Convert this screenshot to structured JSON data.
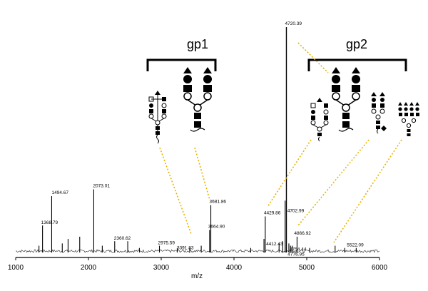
{
  "chart_data": {
    "type": "line",
    "xlabel": "m/z",
    "ylabel": "",
    "xlim": [
      1000,
      6000
    ],
    "x_ticks": [
      "1000",
      "2000",
      "3000",
      "4000",
      "5000",
      "6000"
    ],
    "grid": false,
    "legend": "none",
    "peaks": [
      {
        "mz": 1368.79,
        "label": "1368.79",
        "rel": 0.12
      },
      {
        "mz": 1494.67,
        "label": "1494.67",
        "rel": 0.25
      },
      {
        "mz": 2073.01,
        "label": "2073.01",
        "rel": 0.28
      },
      {
        "mz": 2360.62,
        "label": "2360.62",
        "rel": 0.05
      },
      {
        "mz": 2975.59,
        "label": "2975.59",
        "rel": 0.03
      },
      {
        "mz": 3391.83,
        "label": "3391.83",
        "rel": 0.02
      },
      {
        "mz": 3664.9,
        "label": "3664.90",
        "rel": 0.1
      },
      {
        "mz": 3681.86,
        "label": "3681.86",
        "rel": 0.21
      },
      {
        "mz": 4412.43,
        "label": "4412.43",
        "rel": 0.06
      },
      {
        "mz": 4429.86,
        "label": "4429.86",
        "rel": 0.16
      },
      {
        "mz": 4702.99,
        "label": "4702.99",
        "rel": 0.23
      },
      {
        "mz": 4720.39,
        "label": "4720.39",
        "rel": 1.0
      },
      {
        "mz": 4754.44,
        "label": "4754.44",
        "rel": 0.04
      },
      {
        "mz": 4776.95,
        "label": "4776.95",
        "rel": 0.03
      },
      {
        "mz": 4866.92,
        "label": "4866.92",
        "rel": 0.07
      },
      {
        "mz": 5522.09,
        "label": "5522.09",
        "rel": 0.02
      }
    ],
    "minor_peaks": [
      {
        "mz": 1320,
        "rel": 0.03
      },
      {
        "mz": 1640,
        "rel": 0.04
      },
      {
        "mz": 1720,
        "rel": 0.06
      },
      {
        "mz": 1880,
        "rel": 0.07
      },
      {
        "mz": 2190,
        "rel": 0.03
      },
      {
        "mz": 2540,
        "rel": 0.05
      },
      {
        "mz": 2700,
        "rel": 0.02
      },
      {
        "mz": 3220,
        "rel": 0.02
      },
      {
        "mz": 3550,
        "rel": 0.03
      },
      {
        "mz": 4230,
        "rel": 0.02
      },
      {
        "mz": 4620,
        "rel": 0.04
      },
      {
        "mz": 4670,
        "rel": 0.05
      },
      {
        "mz": 4800,
        "rel": 0.03
      },
      {
        "mz": 5040,
        "rel": 0.02
      },
      {
        "mz": 5390,
        "rel": 0.03
      },
      {
        "mz": 5680,
        "rel": 0.02
      }
    ],
    "groups": [
      {
        "label": "gp1"
      },
      {
        "label": "gp2"
      }
    ]
  }
}
